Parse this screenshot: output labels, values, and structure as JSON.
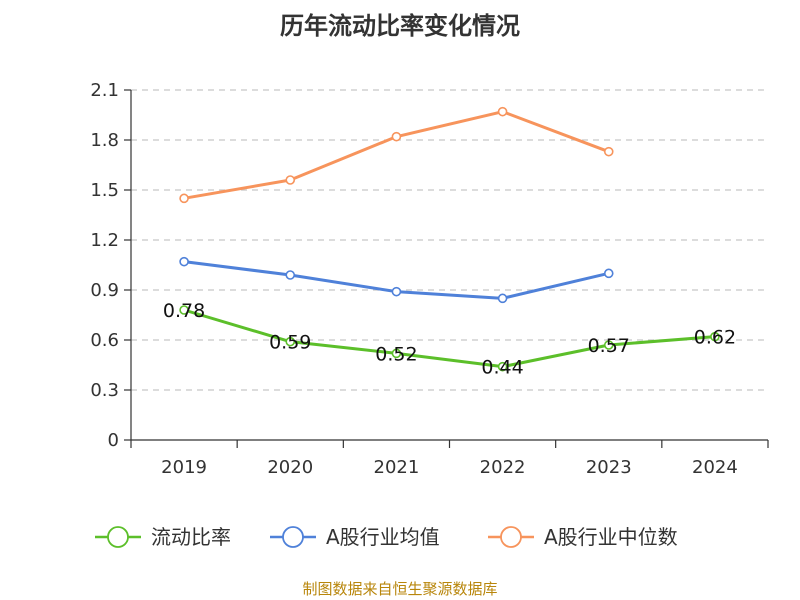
{
  "chart_data": {
    "type": "line",
    "title": "历年流动比率变化情况",
    "categories": [
      "2019",
      "2020",
      "2021",
      "2022",
      "2023",
      "2024"
    ],
    "ylim": [
      0,
      2.1
    ],
    "yticks": [
      "0",
      "0.3",
      "0.6",
      "0.9",
      "1.2",
      "1.5",
      "1.8",
      "2.1"
    ],
    "grid": true,
    "legend_position": "bottom",
    "series": [
      {
        "name": "流动比率",
        "color": "#5cbf2a",
        "values": [
          0.78,
          0.59,
          0.52,
          0.44,
          0.57,
          0.62
        ],
        "labels": [
          "0.78",
          "0.59",
          "0.52",
          "0.44",
          "0.57",
          "0.62"
        ]
      },
      {
        "name": "A股行业均值",
        "color": "#4f81d9",
        "values": [
          1.07,
          0.99,
          0.89,
          0.85,
          1.0,
          null
        ]
      },
      {
        "name": "A股行业中位数",
        "color": "#f7945c",
        "values": [
          1.45,
          1.56,
          1.82,
          1.97,
          1.73,
          null
        ]
      }
    ]
  },
  "footer": {
    "source": "制图数据来自恒生聚源数据库"
  }
}
